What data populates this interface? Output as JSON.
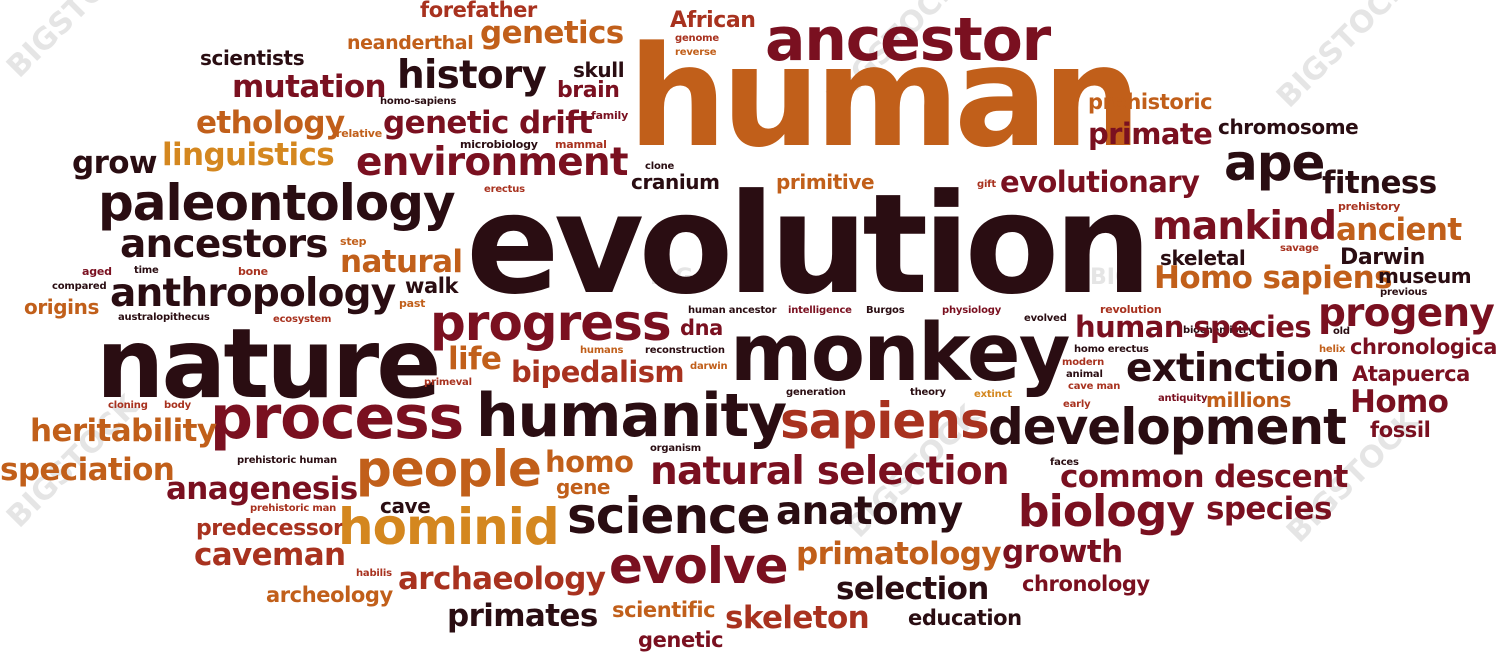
{
  "watermark": {
    "text": "BIGSTOCK",
    "short": "BIG"
  },
  "colors": {
    "c1": "#2a0d12",
    "c2": "#7a1020",
    "c3": "#a8321f",
    "c4": "#c15f1a",
    "c5": "#d4871f"
  },
  "words": {
    "forefather": "forefather",
    "african": "African",
    "ancestor": "ancestor",
    "scientists": "scientists",
    "neanderthal": "neanderthal",
    "genetics": "genetics",
    "genome": "genome",
    "reverse": "reverse",
    "skull": "skull",
    "history": "history",
    "brain": "brain",
    "mutation": "mutation",
    "human": "human",
    "homo_sapiens_small": "homo-sapiens",
    "prehistoric": "prehistoric",
    "ethology": "ethology",
    "relative": "relative",
    "genetic_drift": "genetic drift",
    "family": "family",
    "primate": "primate",
    "chromosome": "chromosome",
    "microbiology": "microbiology",
    "mammal": "mammal",
    "grow": "grow",
    "linguistics": "linguistics",
    "environment": "environment",
    "ape": "ape",
    "clone": "clone",
    "cranium": "cranium",
    "primitive": "primitive",
    "gift": "gift",
    "evolutionary": "evolutionary",
    "fitness": "fitness",
    "paleontology": "paleontology",
    "erectus": "erectus",
    "prehistory": "prehistory",
    "evolution": "evolution",
    "mankind": "mankind",
    "ancient": "ancient",
    "ancestors": "ancestors",
    "step": "step",
    "skeletal": "skeletal",
    "savage": "savage",
    "darwin": "Darwin",
    "aged": "aged",
    "time": "time",
    "bone": "bone",
    "natural": "natural",
    "homo_sapiens": "Homo sapiens",
    "museum": "museum",
    "compared": "compared",
    "walk": "walk",
    "previous": "previous",
    "anthropology": "anthropology",
    "past": "past",
    "origins": "origins",
    "australopithecus": "australopithecus",
    "ecosystem": "ecosystem",
    "progress": "progress",
    "human_ancestor": "human ancestor",
    "intelligence": "intelligence",
    "burgos": "Burgos",
    "physiology": "physiology",
    "evolved": "evolved",
    "revolution": "revolution",
    "biochemistry": "biochemistry",
    "progeny": "progeny",
    "dna": "dna",
    "human_species": "human species",
    "old": "old",
    "nature": "nature",
    "monkey": "monkey",
    "homo_erectus": "homo erectus",
    "chronological": "chronological",
    "humans": "humans",
    "reconstruction": "reconstruction",
    "helix": "helix",
    "life": "life",
    "modern": "modern",
    "extinction": "extinction",
    "bipedalism": "bipedalism",
    "darwin_small": "darwin",
    "animal": "animal",
    "atapuerca": "Atapuerca",
    "primeval": "primeval",
    "cave_man": "cave man",
    "generation": "generation",
    "theory": "theory",
    "extinct": "extinct",
    "antiquity": "antiquity",
    "millions": "millions",
    "cloning": "cloning",
    "body": "body",
    "early": "early",
    "process": "process",
    "humanity": "humanity",
    "sapiens": "sapiens",
    "homo_big": "Homo",
    "heritability": "heritability",
    "development": "development",
    "fossil": "fossil",
    "organism": "organism",
    "prehistoric_human": "prehistoric human",
    "homo": "homo",
    "faces": "faces",
    "speciation": "speciation",
    "people": "people",
    "natural_selection": "natural selection",
    "gene": "gene",
    "common_descent": "common descent",
    "anagenesis": "anagenesis",
    "cave": "cave",
    "prehistoric_man": "prehistoric man",
    "science": "science",
    "anatomy": "anatomy",
    "biology": "biology",
    "species": "species",
    "predecessor": "predecessor",
    "hominid": "hominid",
    "caveman": "caveman",
    "evolve": "evolve",
    "primatology": "primatology",
    "growth": "growth",
    "habilis": "habilis",
    "archaeology": "archaeology",
    "archeology": "archeology",
    "selection": "selection",
    "chronology": "chronology",
    "primates": "primates",
    "scientific": "scientific",
    "skeleton": "skeleton",
    "education": "education",
    "genetic": "genetic"
  }
}
